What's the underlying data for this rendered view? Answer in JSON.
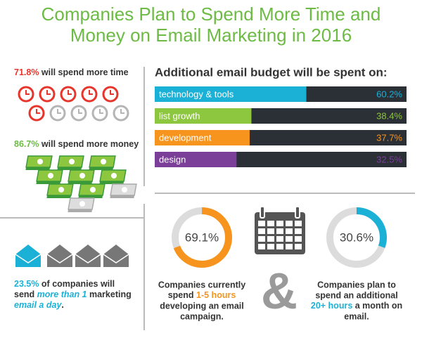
{
  "title": [
    "Companies Plan to Spend More Time and",
    "Money on Email Marketing in 2016"
  ],
  "time_stat": {
    "value": "71.8%",
    "text": " will spend more time"
  },
  "money_stat": {
    "value": "86.7%",
    "text": " will spend more money"
  },
  "email_stat": [
    "23.5%",
    " of companies will",
    "send ",
    "more than 1",
    " marketing",
    "email a day",
    "."
  ],
  "ampersand": "&",
  "chart_data": [
    {
      "type": "bar",
      "title": "Additional email budget will be spent on:",
      "categories": [
        "technology & tools",
        "list growth",
        "development",
        "design"
      ],
      "values": [
        60.2,
        38.4,
        37.7,
        32.5
      ],
      "value_labels": [
        "60.2%",
        "38.4%",
        "37.7%",
        "32.5%"
      ],
      "colors": [
        "#1bb1d7",
        "#8dc63f",
        "#f7941d",
        "#7b3f99"
      ],
      "xlim": [
        0,
        100
      ]
    },
    {
      "type": "donut",
      "values": [
        69.1
      ],
      "value_labels": [
        "69.1%"
      ],
      "color": "#f7941d",
      "caption": [
        "Companies currently",
        "spend ",
        "1-5 hours",
        "developing an email",
        "campaign."
      ]
    },
    {
      "type": "donut",
      "values": [
        30.6
      ],
      "value_labels": [
        "30.6%"
      ],
      "color": "#1bb1d7",
      "caption": [
        "Companies plan to",
        "spend an additional",
        "20+ hours",
        " a month on",
        "email."
      ]
    }
  ]
}
